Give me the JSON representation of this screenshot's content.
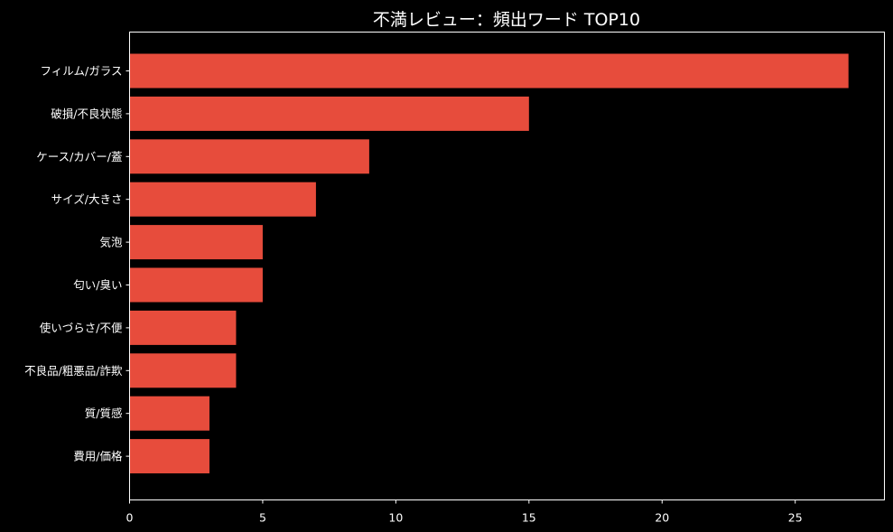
{
  "chart_data": {
    "type": "bar",
    "orientation": "horizontal",
    "title": "不満レビュー：頻出ワード TOP10",
    "xlabel": "",
    "ylabel": "",
    "categories": [
      "フィルム/ガラス",
      "破損/不良状態",
      "ケース/カバー/蓋",
      "サイズ/大きさ",
      "気泡",
      "匂い/臭い",
      "使いづらさ/不便",
      "不良品/粗悪品/詐欺",
      "質/質感",
      "費用/価格"
    ],
    "values": [
      27,
      15,
      9,
      7,
      5,
      5,
      4,
      4,
      3,
      3
    ],
    "xlim": [
      0,
      28.35
    ],
    "xticks": [
      0,
      5,
      10,
      15,
      20,
      25
    ],
    "grid": false,
    "legend": "none",
    "colors": {
      "bar": "#E74C3C",
      "background": "#000000",
      "text": "#ffffff",
      "axis": "#ffffff"
    }
  }
}
